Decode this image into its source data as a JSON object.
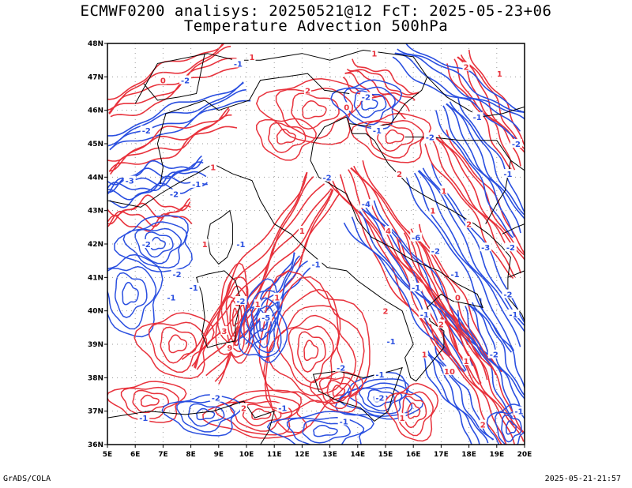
{
  "title_line1": "ECMWF0200 analisys: 20250521@12 FcT: 2025-05-23+06",
  "title_line2": "Temperature Advection 500hPa",
  "footer_left": "GrADS/COLA",
  "footer_right": "2025-05-21-21:57",
  "colors": {
    "positive": "#e8323c",
    "negative": "#2a4fe0",
    "coast": "#000000",
    "grid": "#9a9a9a"
  },
  "map": {
    "lon_range": [
      5,
      20
    ],
    "lat_range": [
      36,
      48
    ],
    "x_ticks": [
      "5E",
      "6E",
      "7E",
      "8E",
      "9E",
      "10E",
      "11E",
      "12E",
      "13E",
      "14E",
      "15E",
      "16E",
      "17E",
      "18E",
      "19E",
      "20E"
    ],
    "y_ticks": [
      "36N",
      "37N",
      "38N",
      "39N",
      "40N",
      "41N",
      "42N",
      "43N",
      "44N",
      "45N",
      "46N",
      "47N",
      "48N"
    ],
    "grid": "dotted"
  },
  "contour_labels": [
    {
      "text": "-2",
      "lon": 7.8,
      "lat": 46.9,
      "sign": "neg"
    },
    {
      "text": "-1",
      "lon": 9.7,
      "lat": 47.4,
      "sign": "neg"
    },
    {
      "text": "1",
      "lon": 10.2,
      "lat": 47.6,
      "sign": "pos"
    },
    {
      "text": "0",
      "lon": 7.0,
      "lat": 46.9,
      "sign": "pos"
    },
    {
      "text": "-2",
      "lon": 6.4,
      "lat": 45.4,
      "sign": "neg"
    },
    {
      "text": "-3",
      "lon": 5.8,
      "lat": 43.9,
      "sign": "neg"
    },
    {
      "text": "-2",
      "lon": 7.4,
      "lat": 43.5,
      "sign": "neg"
    },
    {
      "text": "1",
      "lon": 8.8,
      "lat": 44.3,
      "sign": "pos"
    },
    {
      "text": "-1",
      "lon": 8.2,
      "lat": 43.8,
      "sign": "neg"
    },
    {
      "text": "-2",
      "lon": 7.5,
      "lat": 41.1,
      "sign": "neg"
    },
    {
      "text": "-1",
      "lon": 7.3,
      "lat": 40.4,
      "sign": "neg"
    },
    {
      "text": "-2",
      "lon": 14.3,
      "lat": 46.4,
      "sign": "neg"
    },
    {
      "text": "-1",
      "lon": 14.7,
      "lat": 45.4,
      "sign": "neg"
    },
    {
      "text": "0",
      "lon": 13.6,
      "lat": 46.1,
      "sign": "pos"
    },
    {
      "text": "1",
      "lon": 14.6,
      "lat": 47.7,
      "sign": "pos"
    },
    {
      "text": "2",
      "lon": 15.5,
      "lat": 44.1,
      "sign": "pos"
    },
    {
      "text": "-4",
      "lon": 14.3,
      "lat": 43.2,
      "sign": "neg"
    },
    {
      "text": "4",
      "lon": 15.1,
      "lat": 42.4,
      "sign": "pos"
    },
    {
      "text": "-6",
      "lon": 16.1,
      "lat": 42.2,
      "sign": "neg"
    },
    {
      "text": "-2",
      "lon": 16.8,
      "lat": 41.8,
      "sign": "neg"
    },
    {
      "text": "1",
      "lon": 17.1,
      "lat": 43.6,
      "sign": "pos"
    },
    {
      "text": "2",
      "lon": 18.0,
      "lat": 42.6,
      "sign": "pos"
    },
    {
      "text": "-1",
      "lon": 17.5,
      "lat": 41.1,
      "sign": "neg"
    },
    {
      "text": "-3",
      "lon": 18.6,
      "lat": 41.9,
      "sign": "neg"
    },
    {
      "text": "-2",
      "lon": 19.5,
      "lat": 41.9,
      "sign": "neg"
    },
    {
      "text": "-1",
      "lon": 19.4,
      "lat": 44.1,
      "sign": "neg"
    },
    {
      "text": "-2",
      "lon": 19.7,
      "lat": 45.0,
      "sign": "neg"
    },
    {
      "text": "-2",
      "lon": 9.8,
      "lat": 40.3,
      "sign": "neg"
    },
    {
      "text": "1",
      "lon": 10.4,
      "lat": 40.2,
      "sign": "pos"
    },
    {
      "text": "-5",
      "lon": 10.7,
      "lat": 39.8,
      "sign": "neg"
    },
    {
      "text": "3",
      "lon": 9.2,
      "lat": 39.4,
      "sign": "pos"
    },
    {
      "text": "9",
      "lon": 9.4,
      "lat": 38.9,
      "sign": "pos"
    },
    {
      "text": "-1",
      "lon": 8.1,
      "lat": 40.7,
      "sign": "neg"
    },
    {
      "text": "-1",
      "lon": 12.5,
      "lat": 41.4,
      "sign": "neg"
    },
    {
      "text": "1",
      "lon": 11.1,
      "lat": 40.4,
      "sign": "pos"
    },
    {
      "text": "2",
      "lon": 15.0,
      "lat": 40.0,
      "sign": "pos"
    },
    {
      "text": "-1",
      "lon": 16.4,
      "lat": 39.9,
      "sign": "neg"
    },
    {
      "text": "-1",
      "lon": 15.2,
      "lat": 39.1,
      "sign": "neg"
    },
    {
      "text": "-1",
      "lon": 14.8,
      "lat": 38.1,
      "sign": "neg"
    },
    {
      "text": "-2",
      "lon": 13.4,
      "lat": 38.3,
      "sign": "neg"
    },
    {
      "text": "-2",
      "lon": 14.8,
      "lat": 37.4,
      "sign": "neg"
    },
    {
      "text": "1",
      "lon": 16.4,
      "lat": 38.7,
      "sign": "pos"
    },
    {
      "text": "1",
      "lon": 17.9,
      "lat": 38.5,
      "sign": "pos"
    },
    {
      "text": "-2",
      "lon": 18.9,
      "lat": 38.7,
      "sign": "neg"
    },
    {
      "text": "-1",
      "lon": 19.6,
      "lat": 39.9,
      "sign": "neg"
    },
    {
      "text": "-2",
      "lon": 19.4,
      "lat": 40.5,
      "sign": "neg"
    },
    {
      "text": "0",
      "lon": 17.6,
      "lat": 40.4,
      "sign": "pos"
    },
    {
      "text": "-2",
      "lon": 8.9,
      "lat": 37.4,
      "sign": "neg"
    },
    {
      "text": "-1",
      "lon": 6.3,
      "lat": 36.8,
      "sign": "neg"
    },
    {
      "text": "-1",
      "lon": 11.3,
      "lat": 37.1,
      "sign": "neg"
    },
    {
      "text": "-1",
      "lon": 13.5,
      "lat": 36.7,
      "sign": "neg"
    },
    {
      "text": "2",
      "lon": 9.9,
      "lat": 37.1,
      "sign": "pos"
    },
    {
      "text": "1",
      "lon": 15.6,
      "lat": 36.8,
      "sign": "pos"
    },
    {
      "text": "-1",
      "lon": 19.8,
      "lat": 37.0,
      "sign": "neg"
    },
    {
      "text": "2",
      "lon": 18.5,
      "lat": 36.6,
      "sign": "pos"
    },
    {
      "text": "-2",
      "lon": 6.4,
      "lat": 42.0,
      "sign": "neg"
    },
    {
      "text": "1",
      "lon": 8.5,
      "lat": 42.0,
      "sign": "pos"
    },
    {
      "text": "-1",
      "lon": 9.8,
      "lat": 42.0,
      "sign": "neg"
    },
    {
      "text": "1",
      "lon": 12.0,
      "lat": 42.4,
      "sign": "pos"
    },
    {
      "text": "-2",
      "lon": 12.9,
      "lat": 44.0,
      "sign": "neg"
    },
    {
      "text": "2",
      "lon": 12.2,
      "lat": 46.6,
      "sign": "pos"
    },
    {
      "text": "-2",
      "lon": 16.6,
      "lat": 45.2,
      "sign": "neg"
    },
    {
      "text": "2",
      "lon": 17.9,
      "lat": 47.3,
      "sign": "pos"
    },
    {
      "text": "-1",
      "lon": 18.3,
      "lat": 45.8,
      "sign": "neg"
    },
    {
      "text": "1",
      "lon": 19.1,
      "lat": 47.1,
      "sign": "pos"
    },
    {
      "text": "1",
      "lon": 16.7,
      "lat": 43.0,
      "sign": "pos"
    },
    {
      "text": "-1",
      "lon": 16.1,
      "lat": 40.7,
      "sign": "neg"
    },
    {
      "text": "2",
      "lon": 17.0,
      "lat": 39.6,
      "sign": "pos"
    },
    {
      "text": "10",
      "lon": 17.3,
      "lat": 38.2,
      "sign": "pos"
    }
  ]
}
